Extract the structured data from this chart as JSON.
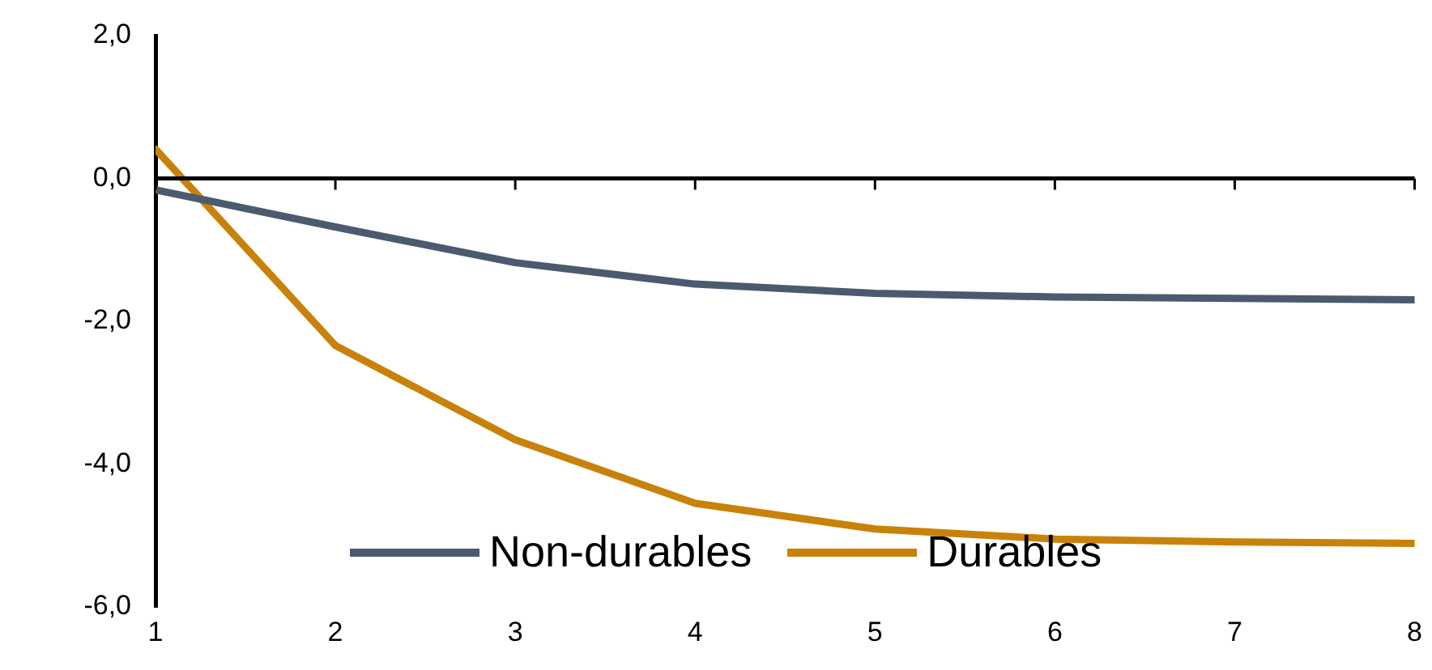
{
  "chart_data": {
    "type": "line",
    "x": [
      1,
      2,
      3,
      4,
      5,
      6,
      7,
      8
    ],
    "series": [
      {
        "name": "Non-durables",
        "color": "#4b5a6e",
        "values": [
          -0.16,
          -0.68,
          -1.18,
          -1.48,
          -1.61,
          -1.66,
          -1.68,
          -1.7
        ]
      },
      {
        "name": "Durables",
        "color": "#c8820a",
        "values": [
          0.41,
          -2.34,
          -3.66,
          -4.55,
          -4.91,
          -5.05,
          -5.09,
          -5.11
        ]
      }
    ],
    "xlim": [
      1,
      8
    ],
    "xticks": [
      1,
      2,
      3,
      4,
      5,
      6,
      7,
      8
    ],
    "ylim": [
      -6,
      2
    ],
    "yticks": [
      {
        "value": -6,
        "label": "-6,0"
      },
      {
        "value": -4,
        "label": "-4,0"
      },
      {
        "value": -2,
        "label": "-2,0"
      },
      {
        "value": 0,
        "label": "0,0"
      },
      {
        "value": 2,
        "label": "2,0"
      }
    ],
    "ref_lines": [
      {
        "axis": "y",
        "value": 0
      }
    ],
    "grid": false,
    "legend": "bottom",
    "marker": "none",
    "line_style": "solid"
  }
}
